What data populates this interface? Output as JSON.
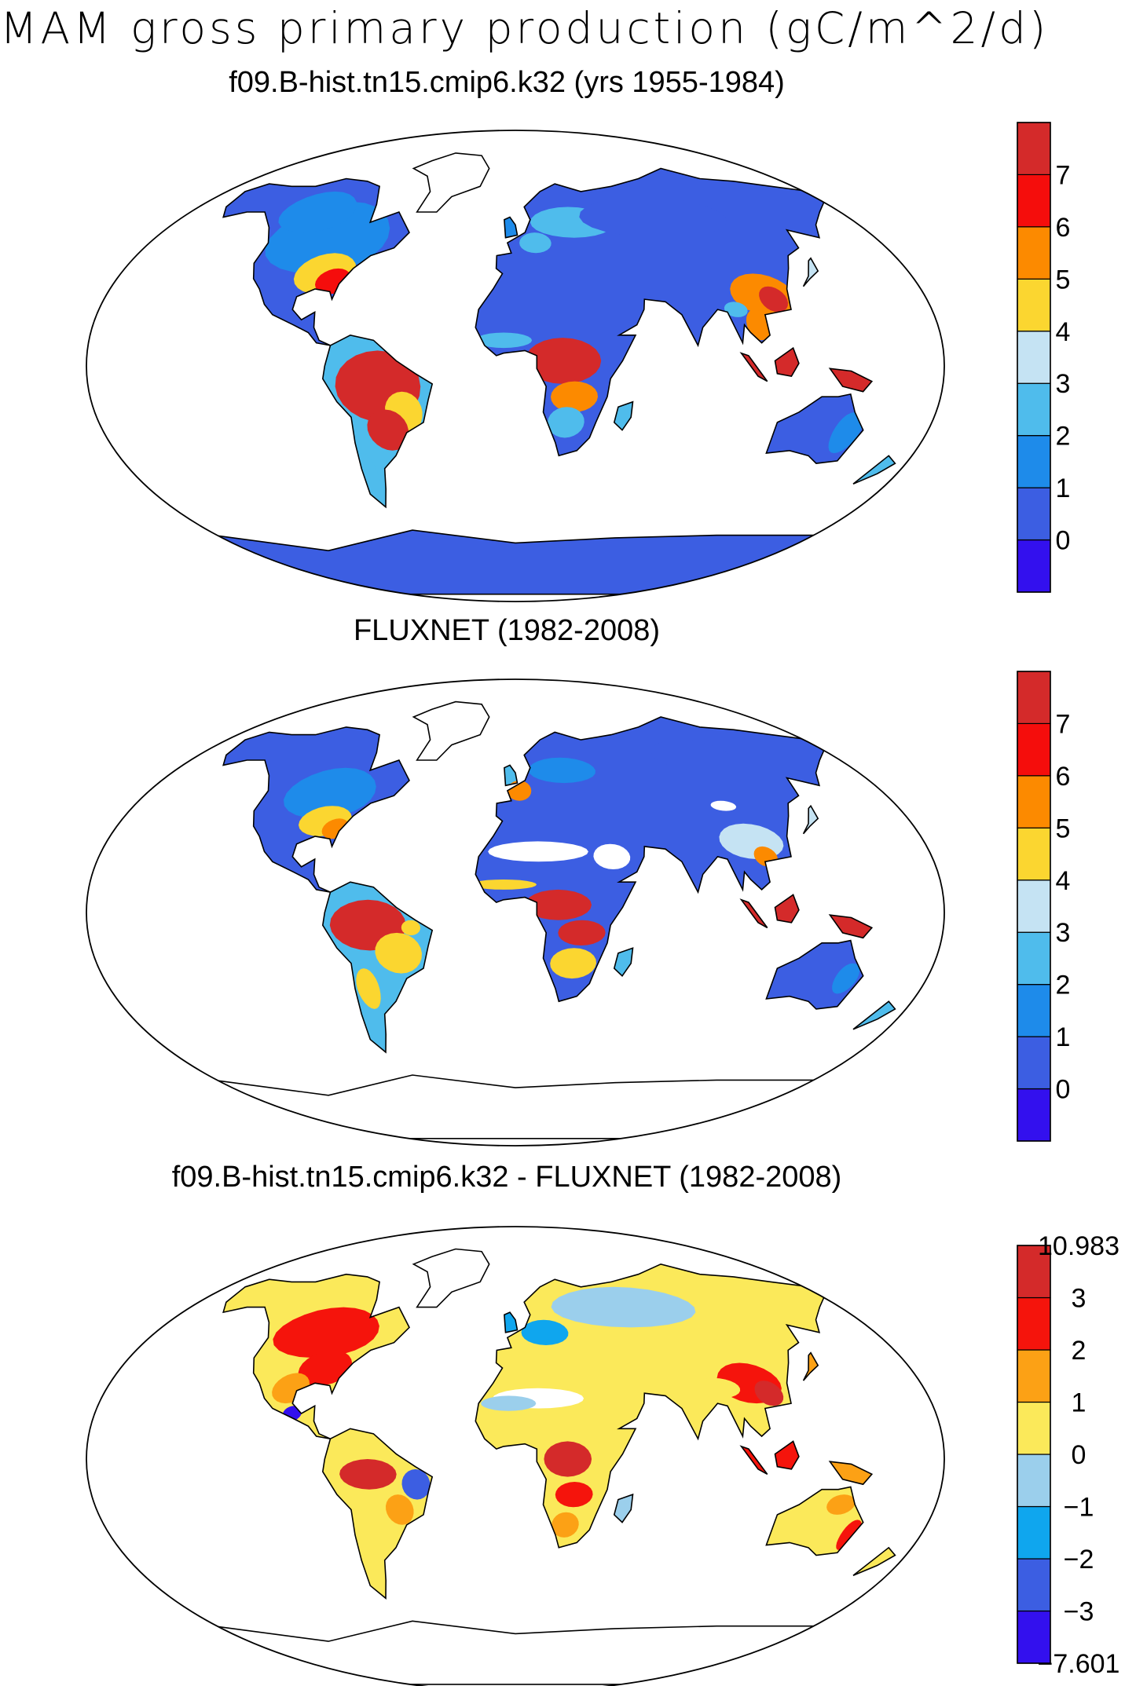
{
  "figure": {
    "title": "MAM gross primary production (gC/m^2/d)"
  },
  "panels": [
    {
      "id": "model",
      "title": "f09.B-hist.tn15.cmip6.k32 (yrs 1955-1984)",
      "colorbar": {
        "labels": [
          "0",
          "1",
          "2",
          "3",
          "4",
          "5",
          "6",
          "7"
        ],
        "colors": [
          "#3310ee",
          "#3c5ee2",
          "#1e8bea",
          "#4fbcec",
          "#c5e3f3",
          "#fbd630",
          "#fc8a00",
          "#f50d0c",
          "#d42a2a"
        ]
      }
    },
    {
      "id": "obs",
      "title": "FLUXNET (1982-2008)",
      "colorbar": {
        "labels": [
          "0",
          "1",
          "2",
          "3",
          "4",
          "5",
          "6",
          "7"
        ],
        "colors": [
          "#3310ee",
          "#3c5ee2",
          "#1e8bea",
          "#4fbcec",
          "#c5e3f3",
          "#fbd630",
          "#fc8a00",
          "#f50d0c",
          "#d42a2a"
        ]
      }
    },
    {
      "id": "diff",
      "title": "f09.B-hist.tn15.cmip6.k32 - FLUXNET (1982-2008)",
      "colorbar": {
        "labels": [
          "-7.601",
          "-3",
          "-2",
          "-1",
          "0",
          "1",
          "2",
          "3",
          "10.983"
        ],
        "colors": [
          "#3310ee",
          "#3c5ee2",
          "#0fa6ee",
          "#9bcfec",
          "#fbe95a",
          "#fca115",
          "#f5140c",
          "#d42a2a"
        ]
      }
    }
  ],
  "chart_data": [
    {
      "type": "heatmap",
      "title": "f09.B-hist.tn15.cmip6.k32 (yrs 1955-1984)",
      "units": "gC/m^2/d",
      "levels": [
        0,
        1,
        2,
        3,
        4,
        5,
        6,
        7
      ],
      "regions": [
        {
          "name": "Amazon",
          "value": 7.5
        },
        {
          "name": "Congo basin",
          "value": 7.5
        },
        {
          "name": "Maritime continent",
          "value": 7.5
        },
        {
          "name": "Southeastern United States",
          "value": 5.5
        },
        {
          "name": "Southern China",
          "value": 6.5
        },
        {
          "name": "Boreal Eurasia",
          "value": 0.5
        },
        {
          "name": "Sahara",
          "value": 0.5
        },
        {
          "name": "Australia",
          "value": 1.5
        },
        {
          "name": "Antarctica",
          "value": 0.5
        }
      ]
    },
    {
      "type": "heatmap",
      "title": "FLUXNET (1982-2008)",
      "units": "gC/m^2/d",
      "levels": [
        0,
        1,
        2,
        3,
        4,
        5,
        6,
        7
      ],
      "regions": [
        {
          "name": "Amazon",
          "value": 7.5
        },
        {
          "name": "Congo basin",
          "value": 7.0
        },
        {
          "name": "Maritime continent",
          "value": 7.5
        },
        {
          "name": "Southeastern United States",
          "value": 4.5
        },
        {
          "name": "Southern China",
          "value": 5.5
        },
        {
          "name": "Boreal Eurasia",
          "value": 0.5
        },
        {
          "name": "Sahara",
          "value": null
        },
        {
          "name": "Australia",
          "value": 0.5
        },
        {
          "name": "Antarctica",
          "value": null
        }
      ]
    },
    {
      "type": "heatmap",
      "title": "f09.B-hist.tn15.cmip6.k32 - FLUXNET (1982-2008)",
      "units": "gC/m^2/d",
      "levels": [
        -3,
        -2,
        -1,
        0,
        1,
        2,
        3
      ],
      "range": [
        -7.601,
        10.983
      ],
      "regions": [
        {
          "name": "Amazon",
          "value": 2.5
        },
        {
          "name": "Eastern Brazil",
          "value": -2.5
        },
        {
          "name": "Congo basin",
          "value": 3.5
        },
        {
          "name": "Eastern United States",
          "value": 2.5
        },
        {
          "name": "Southern China",
          "value": 2.5
        },
        {
          "name": "Boreal Eurasia",
          "value": -0.5
        },
        {
          "name": "Western Europe",
          "value": -1.5
        },
        {
          "name": "Australia",
          "value": 0.5
        },
        {
          "name": "Sahara",
          "value": null
        }
      ]
    }
  ]
}
